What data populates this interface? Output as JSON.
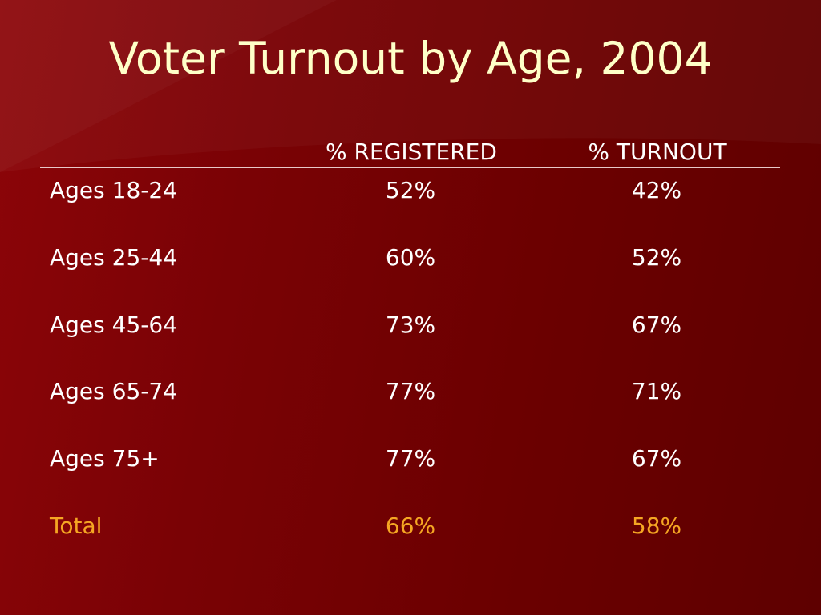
{
  "title": "Voter Turnout by Age, 2004",
  "colors": {
    "background": "#7a0205",
    "title": "#ffffc8",
    "text": "#ffffff",
    "total": "#f5a623"
  },
  "table": {
    "headers": {
      "registered": "% REGISTERED",
      "turnout": "% TURNOUT"
    },
    "rows": [
      {
        "label": "Ages 18-24",
        "registered": "52%",
        "turnout": "42%"
      },
      {
        "label": "Ages 25-44",
        "registered": "60%",
        "turnout": "52%"
      },
      {
        "label": "Ages 45-64",
        "registered": "73%",
        "turnout": "67%"
      },
      {
        "label": "Ages 65-74",
        "registered": "77%",
        "turnout": "71%"
      },
      {
        "label": "Ages 75+",
        "registered": "77%",
        "turnout": "67%"
      }
    ],
    "total": {
      "label": "Total",
      "registered": "66%",
      "turnout": "58%"
    }
  }
}
